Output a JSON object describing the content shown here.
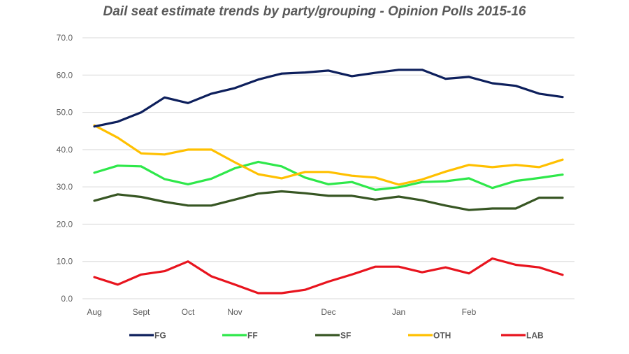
{
  "chart_data": {
    "type": "line",
    "title": "Dail seat estimate trends by party/grouping - Opinion Polls 2015-16",
    "xlabel": "",
    "ylabel": "",
    "ylim": [
      0,
      70
    ],
    "y_ticks": [
      "0.0",
      "10.0",
      "20.0",
      "30.0",
      "40.0",
      "50.0",
      "60.0",
      "70.0"
    ],
    "y_tick_values": [
      0,
      10,
      20,
      30,
      40,
      50,
      60,
      70
    ],
    "grid": true,
    "legend_position": "bottom",
    "x_points": 21,
    "x_tick_labels": [
      {
        "label": "Aug",
        "index": 0
      },
      {
        "label": "Sept",
        "index": 2
      },
      {
        "label": "Oct",
        "index": 4
      },
      {
        "label": "Nov",
        "index": 6
      },
      {
        "label": "Dec",
        "index": 10
      },
      {
        "label": "Jan",
        "index": 13
      },
      {
        "label": "Feb",
        "index": 16
      }
    ],
    "series": [
      {
        "name": "FG",
        "color": "#0d1f5c",
        "values": [
          46.2,
          47.5,
          50.0,
          54.0,
          52.5,
          55.0,
          56.5,
          58.8,
          60.4,
          60.7,
          61.2,
          59.7,
          60.6,
          61.4,
          61.4,
          59.0,
          59.5,
          57.8,
          57.1,
          55.0,
          54.1
        ]
      },
      {
        "name": "FF",
        "color": "#2ee84a",
        "values": [
          33.8,
          35.7,
          35.5,
          32.1,
          30.7,
          32.2,
          35.0,
          36.7,
          35.5,
          32.5,
          30.7,
          31.3,
          29.2,
          29.9,
          31.3,
          31.5,
          32.3,
          29.7,
          31.6,
          32.4,
          33.3
        ]
      },
      {
        "name": "SF",
        "color": "#375623",
        "values": [
          26.3,
          28.0,
          27.3,
          26.0,
          25.0,
          25.0,
          26.6,
          28.2,
          28.8,
          28.3,
          27.6,
          27.6,
          26.6,
          27.4,
          26.4,
          25.0,
          23.8,
          24.2,
          24.2,
          27.1,
          27.1
        ]
      },
      {
        "name": "OTH",
        "color": "#ffc000",
        "values": [
          46.5,
          43.2,
          39.0,
          38.7,
          40.0,
          40.0,
          36.6,
          33.4,
          32.3,
          34.0,
          34.0,
          33.0,
          32.5,
          30.6,
          32.0,
          34.1,
          35.9,
          35.3,
          35.9,
          35.3,
          37.3
        ]
      },
      {
        "name": "LAB",
        "color": "#e8141e",
        "values": [
          5.8,
          3.8,
          6.5,
          7.4,
          10.0,
          6.0,
          3.8,
          1.5,
          1.5,
          2.4,
          4.6,
          6.5,
          8.6,
          8.6,
          7.1,
          8.4,
          6.8,
          10.8,
          9.1,
          8.4,
          6.4
        ]
      }
    ]
  }
}
